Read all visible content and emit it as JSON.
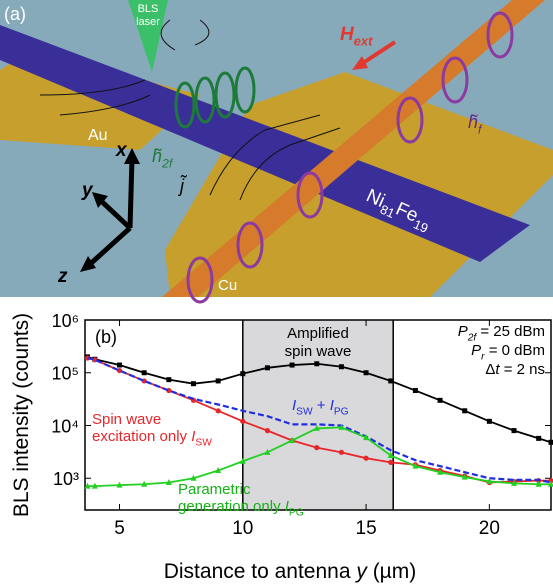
{
  "illustration": {
    "panel_label": "(a)",
    "laser": [
      "BLS",
      "laser"
    ],
    "field": [
      {
        "text": "H",
        "style": "italic"
      },
      {
        "text": "ext",
        "style": "sub-italic"
      }
    ],
    "au": "Au",
    "h2f": [
      {
        "text": "h̃",
        "style": "italic"
      },
      {
        "text": "2f",
        "style": "sub-italic"
      }
    ],
    "current": "j̃",
    "hf": [
      {
        "text": "h̃",
        "style": "italic"
      },
      {
        "text": "f",
        "style": "sub-italic"
      }
    ],
    "strip": [
      {
        "text": "Ni"
      },
      {
        "text": "81",
        "style": "sub"
      },
      {
        "text": "Fe"
      },
      {
        "text": "19",
        "style": "sub"
      }
    ],
    "cu": "Cu",
    "axes": [
      "x",
      "y",
      "z"
    ]
  },
  "chart_data": {
    "type": "line",
    "panel_label": "(b)",
    "y_label": "BLS intensity (counts)",
    "x_label": [
      {
        "text": "Distance to antenna "
      },
      {
        "text": "y",
        "style": "italic"
      },
      {
        "text": " (µm)"
      }
    ],
    "y_scale": "log",
    "xlim": [
      3.6,
      22.5
    ],
    "xticks": [
      5,
      10,
      15,
      20
    ],
    "ylim": [
      250,
      1000000
    ],
    "yticks": [
      {
        "value": 1000,
        "label": "10³"
      },
      {
        "value": 10000,
        "label": "10⁴"
      },
      {
        "value": 100000,
        "label": "10⁵"
      },
      {
        "value": 1000000,
        "label": "10⁶"
      }
    ],
    "shaded_region": {
      "range": [
        10,
        16.1
      ],
      "color": "#d9d9db",
      "label": [
        [
          "Amplified"
        ],
        [
          "spin wave"
        ]
      ]
    },
    "annotations": [
      [
        {
          "text": "P",
          "style": "italic"
        },
        {
          "text": "2f",
          "style": "sub-italic"
        },
        {
          "text": " = 25 dBm"
        }
      ],
      [
        {
          "text": "P",
          "style": "italic"
        },
        {
          "text": "r",
          "style": "sub-italic"
        },
        {
          "text": " = 0 dBm"
        }
      ],
      [
        {
          "text": "Δ"
        },
        {
          "text": "t",
          "style": "italic"
        },
        {
          "text": " = 2 ns"
        }
      ]
    ],
    "x": [
      3.7,
      4,
      5,
      6,
      7,
      8,
      9,
      10,
      11,
      12,
      13,
      14,
      15,
      16,
      17,
      18,
      19,
      20,
      21,
      22,
      22.5
    ],
    "series": [
      {
        "color": "#000000",
        "marker": "square",
        "dash": false,
        "values": [
          200000,
          180000,
          140000,
          100000,
          74000,
          62000,
          70000,
          96000,
          124000,
          140000,
          148000,
          130000,
          100000,
          70000,
          46000,
          30000,
          19000,
          12000,
          8000,
          5700,
          4800
        ]
      },
      {
        "color": "#e8262a",
        "marker": "circle",
        "dash": false,
        "label": [
          [
            {
              "text": "Spin wave"
            }
          ],
          [
            {
              "text": "excitation only "
            },
            {
              "text": "I",
              "style": "italic"
            },
            {
              "text": "SW",
              "style": "sub"
            }
          ]
        ],
        "values": [
          190000,
          176000,
          110000,
          70000,
          46000,
          30000,
          19000,
          12000,
          8000,
          5200,
          3800,
          3100,
          2400,
          2000,
          1800,
          1400,
          1100,
          830,
          870,
          900,
          900
        ]
      },
      {
        "color": "#1f2fe0",
        "marker": "none",
        "dash": true,
        "label": [
          [
            {
              "text": "I",
              "style": "italic"
            },
            {
              "text": "SW",
              "style": "sub"
            },
            {
              "text": " + "
            },
            {
              "text": "I",
              "style": "italic"
            },
            {
              "text": "PG",
              "style": "sub"
            }
          ]
        ],
        "values": [
          190000,
          176000,
          110000,
          70000,
          46000,
          32000,
          25000,
          19000,
          15000,
          10500,
          10500,
          10000,
          6200,
          3400,
          2200,
          1700,
          1300,
          1000,
          930,
          930,
          830
        ]
      },
      {
        "color": "#22d022",
        "marker": "triangle",
        "dash": false,
        "label": [
          [
            {
              "text": "Parametric"
            }
          ],
          [
            {
              "text": "generation only "
            },
            {
              "text": "I",
              "style": "italic"
            },
            {
              "text": "PG",
              "style": "sub"
            }
          ]
        ],
        "values": [
          710,
          710,
          740,
          770,
          830,
          1000,
          1400,
          2100,
          3100,
          5200,
          8800,
          9200,
          5900,
          2700,
          1700,
          1300,
          1050,
          870,
          800,
          770,
          770
        ]
      }
    ]
  }
}
